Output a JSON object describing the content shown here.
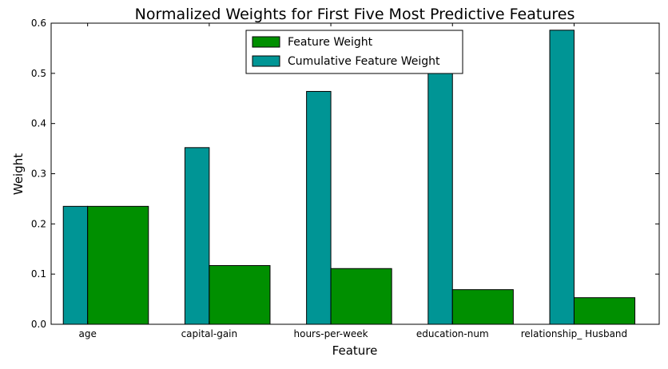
{
  "chart_data": {
    "type": "bar",
    "title": "Normalized Weights for First Five Most Predictive Features",
    "xlabel": "Feature",
    "ylabel": "Weight",
    "ylim": [
      0,
      0.6
    ],
    "yticks": [
      "0.0",
      "0.1",
      "0.2",
      "0.3",
      "0.4",
      "0.5",
      "0.6"
    ],
    "categories": [
      "age",
      "capital-gain",
      "hours-per-week",
      "education-num",
      "relationship_ Husband"
    ],
    "series": [
      {
        "name": "Feature Weight",
        "color": "#008f00",
        "values": [
          0.235,
          0.117,
          0.111,
          0.069,
          0.053
        ]
      },
      {
        "name": "Cumulative Feature Weight",
        "color": "#009595",
        "values": [
          0.235,
          0.352,
          0.464,
          0.533,
          0.586
        ]
      }
    ],
    "grid": false,
    "legend_position": "top-center"
  }
}
